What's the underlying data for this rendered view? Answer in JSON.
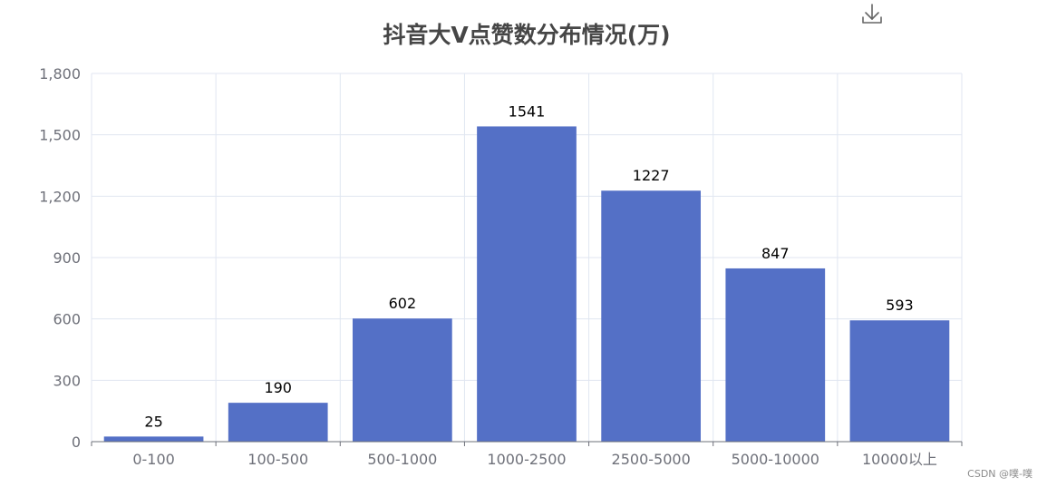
{
  "chart_data": {
    "type": "bar",
    "title": "抖音大V点赞数分布情况(万)",
    "categories": [
      "0-100",
      "100-500",
      "500-1000",
      "1000-2500",
      "2500-5000",
      "5000-10000",
      "10000以上"
    ],
    "values": [
      25,
      190,
      602,
      1541,
      1227,
      847,
      593
    ],
    "ylim": [
      0,
      1800
    ],
    "yticks": [
      0,
      300,
      600,
      900,
      1200,
      1500,
      1800
    ],
    "ytick_labels": [
      "0",
      "300",
      "600",
      "900",
      "1,200",
      "1,500",
      "1,800"
    ],
    "grid": true,
    "data_labels": true
  },
  "colors": {
    "bar": "#5470c6",
    "grid": "#e0e6f1",
    "axis": "#6e7079",
    "title": "#464646"
  },
  "toolbox": {
    "download_icon": "download-icon"
  },
  "watermark": "CSDN @噗-噗"
}
